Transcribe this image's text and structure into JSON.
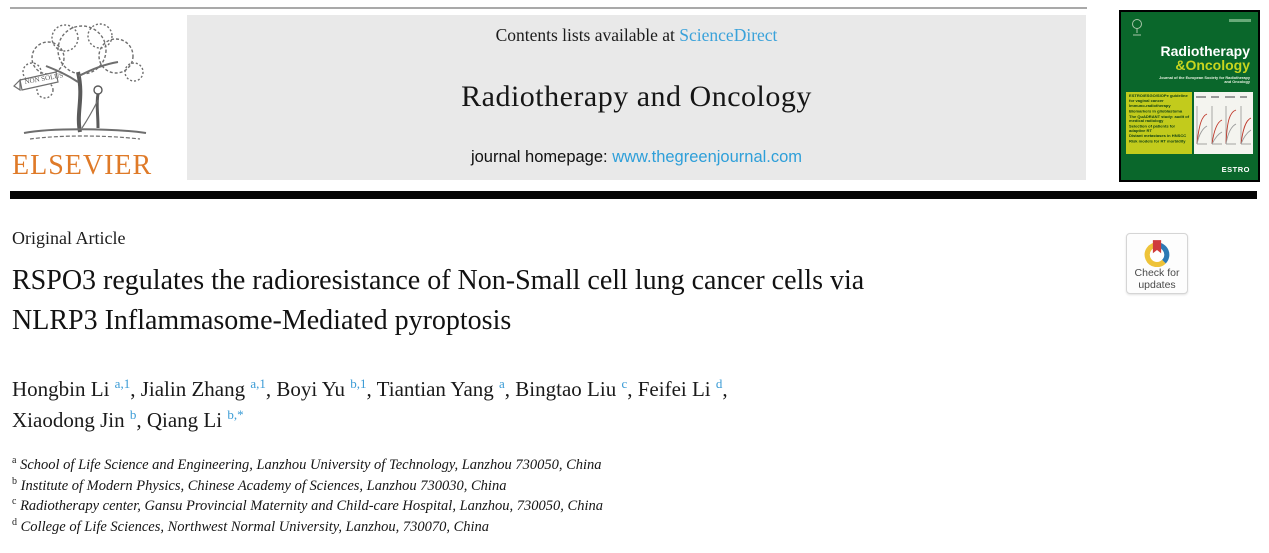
{
  "colors": {
    "link_blue": "#3aa2da",
    "homepage_blue": "#2e9fd9",
    "superscript_blue": "#3a9bd5",
    "elsevier_orange": "#df7a28",
    "header_gray": "#e9e9e9",
    "cover_green": "#0a672b",
    "cover_yellow": "#c2cb1c",
    "divider_black": "#050505"
  },
  "header": {
    "contents_prefix": "Contents lists available at ",
    "contents_link": "ScienceDirect",
    "journal_title": "Radiotherapy and Oncology",
    "homepage_prefix": "journal homepage: ",
    "homepage_url": "www.thegreenjournal.com",
    "elsevier_wordmark": "ELSEVIER",
    "elsevier_banner": "NON SOLUS"
  },
  "cover": {
    "title_line1": "Radiotherapy",
    "title_line2": "&Oncology",
    "subtitle": "Journal of the European Society for Radiotherapy and Oncology",
    "toc_lines": [
      "ESTRO/ESGO/SIOPe guideline for vaginal cancer",
      "Immuno-radiotherapy",
      "Biomarkers in glioblastoma",
      "The QuADRANT study: audit of medical radiology",
      "Selection of patients for adaptive RT",
      "Distant metastases in HNSCC",
      "Risk models for RT morbidity"
    ],
    "estro_label": "ESTRO"
  },
  "article": {
    "type_label": "Original Article",
    "title_line1": "RSPO3 regulates the radioresistance of Non-Small cell lung cancer cells via",
    "title_line2": "NLRP3 Inflammasome-Mediated pyroptosis",
    "authors": [
      {
        "name": "Hongbin Li",
        "sup": "a,1"
      },
      {
        "name": "Jialin Zhang",
        "sup": "a,1"
      },
      {
        "name": "Boyi Yu",
        "sup": "b,1"
      },
      {
        "name": "Tiantian Yang",
        "sup": "a"
      },
      {
        "name": "Bingtao Liu",
        "sup": "c"
      },
      {
        "name": "Feifei Li",
        "sup": "d",
        "break_after": true
      },
      {
        "name": "Xiaodong Jin",
        "sup": "b"
      },
      {
        "name": "Qiang Li",
        "sup": "b,*"
      }
    ],
    "affiliations": [
      {
        "sup": "a",
        "text": "School of Life Science and Engineering, Lanzhou University of Technology, Lanzhou 730050, China"
      },
      {
        "sup": "b",
        "text": "Institute of Modern Physics, Chinese Academy of Sciences, Lanzhou 730030, China"
      },
      {
        "sup": "c",
        "text": "Radiotherapy center, Gansu Provincial Maternity and Child-care Hospital, Lanzhou, 730050, China"
      },
      {
        "sup": "d",
        "text": "College of Life Sciences, Northwest Normal University, Lanzhou, 730070, China"
      }
    ]
  },
  "badge": {
    "line1": "Check for",
    "line2": "updates"
  }
}
